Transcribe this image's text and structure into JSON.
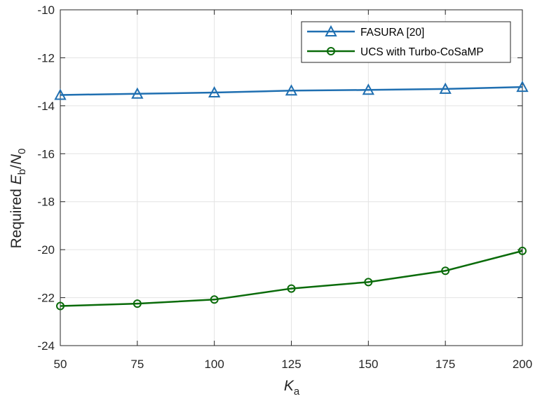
{
  "chart_data": {
    "type": "line",
    "title": "",
    "xlabel": {
      "main": "K",
      "sub": "a"
    },
    "ylabel": {
      "prefix": "Required ",
      "e": "E",
      "e_sub": "b",
      "slash": "/",
      "n": "N",
      "n_sub": "0"
    },
    "x": [
      50,
      75,
      100,
      125,
      150,
      175,
      200
    ],
    "xlim": [
      50,
      200
    ],
    "ylim": [
      -24,
      -10
    ],
    "xticks": [
      50,
      75,
      100,
      125,
      150,
      175,
      200
    ],
    "yticks": [
      -24,
      -22,
      -20,
      -18,
      -16,
      -14,
      -12,
      -10
    ],
    "xtick_labels": [
      "50",
      "75",
      "100",
      "125",
      "150",
      "175",
      "200"
    ],
    "ytick_labels": [
      "-24",
      "-22",
      "-20",
      "-18",
      "-16",
      "-14",
      "-12",
      "-10"
    ],
    "grid": true,
    "legend_position": "top-right",
    "series": [
      {
        "name": "FASURA [20]",
        "color": "#1f6fb1",
        "marker": "triangle",
        "values": [
          -13.55,
          -13.5,
          -13.45,
          -13.37,
          -13.34,
          -13.3,
          -13.22
        ]
      },
      {
        "name": "UCS with Turbo-CoSaMP",
        "color": "#0a6b0a",
        "marker": "circle",
        "values": [
          -22.35,
          -22.25,
          -22.08,
          -21.62,
          -21.35,
          -20.88,
          -20.05
        ]
      }
    ]
  }
}
